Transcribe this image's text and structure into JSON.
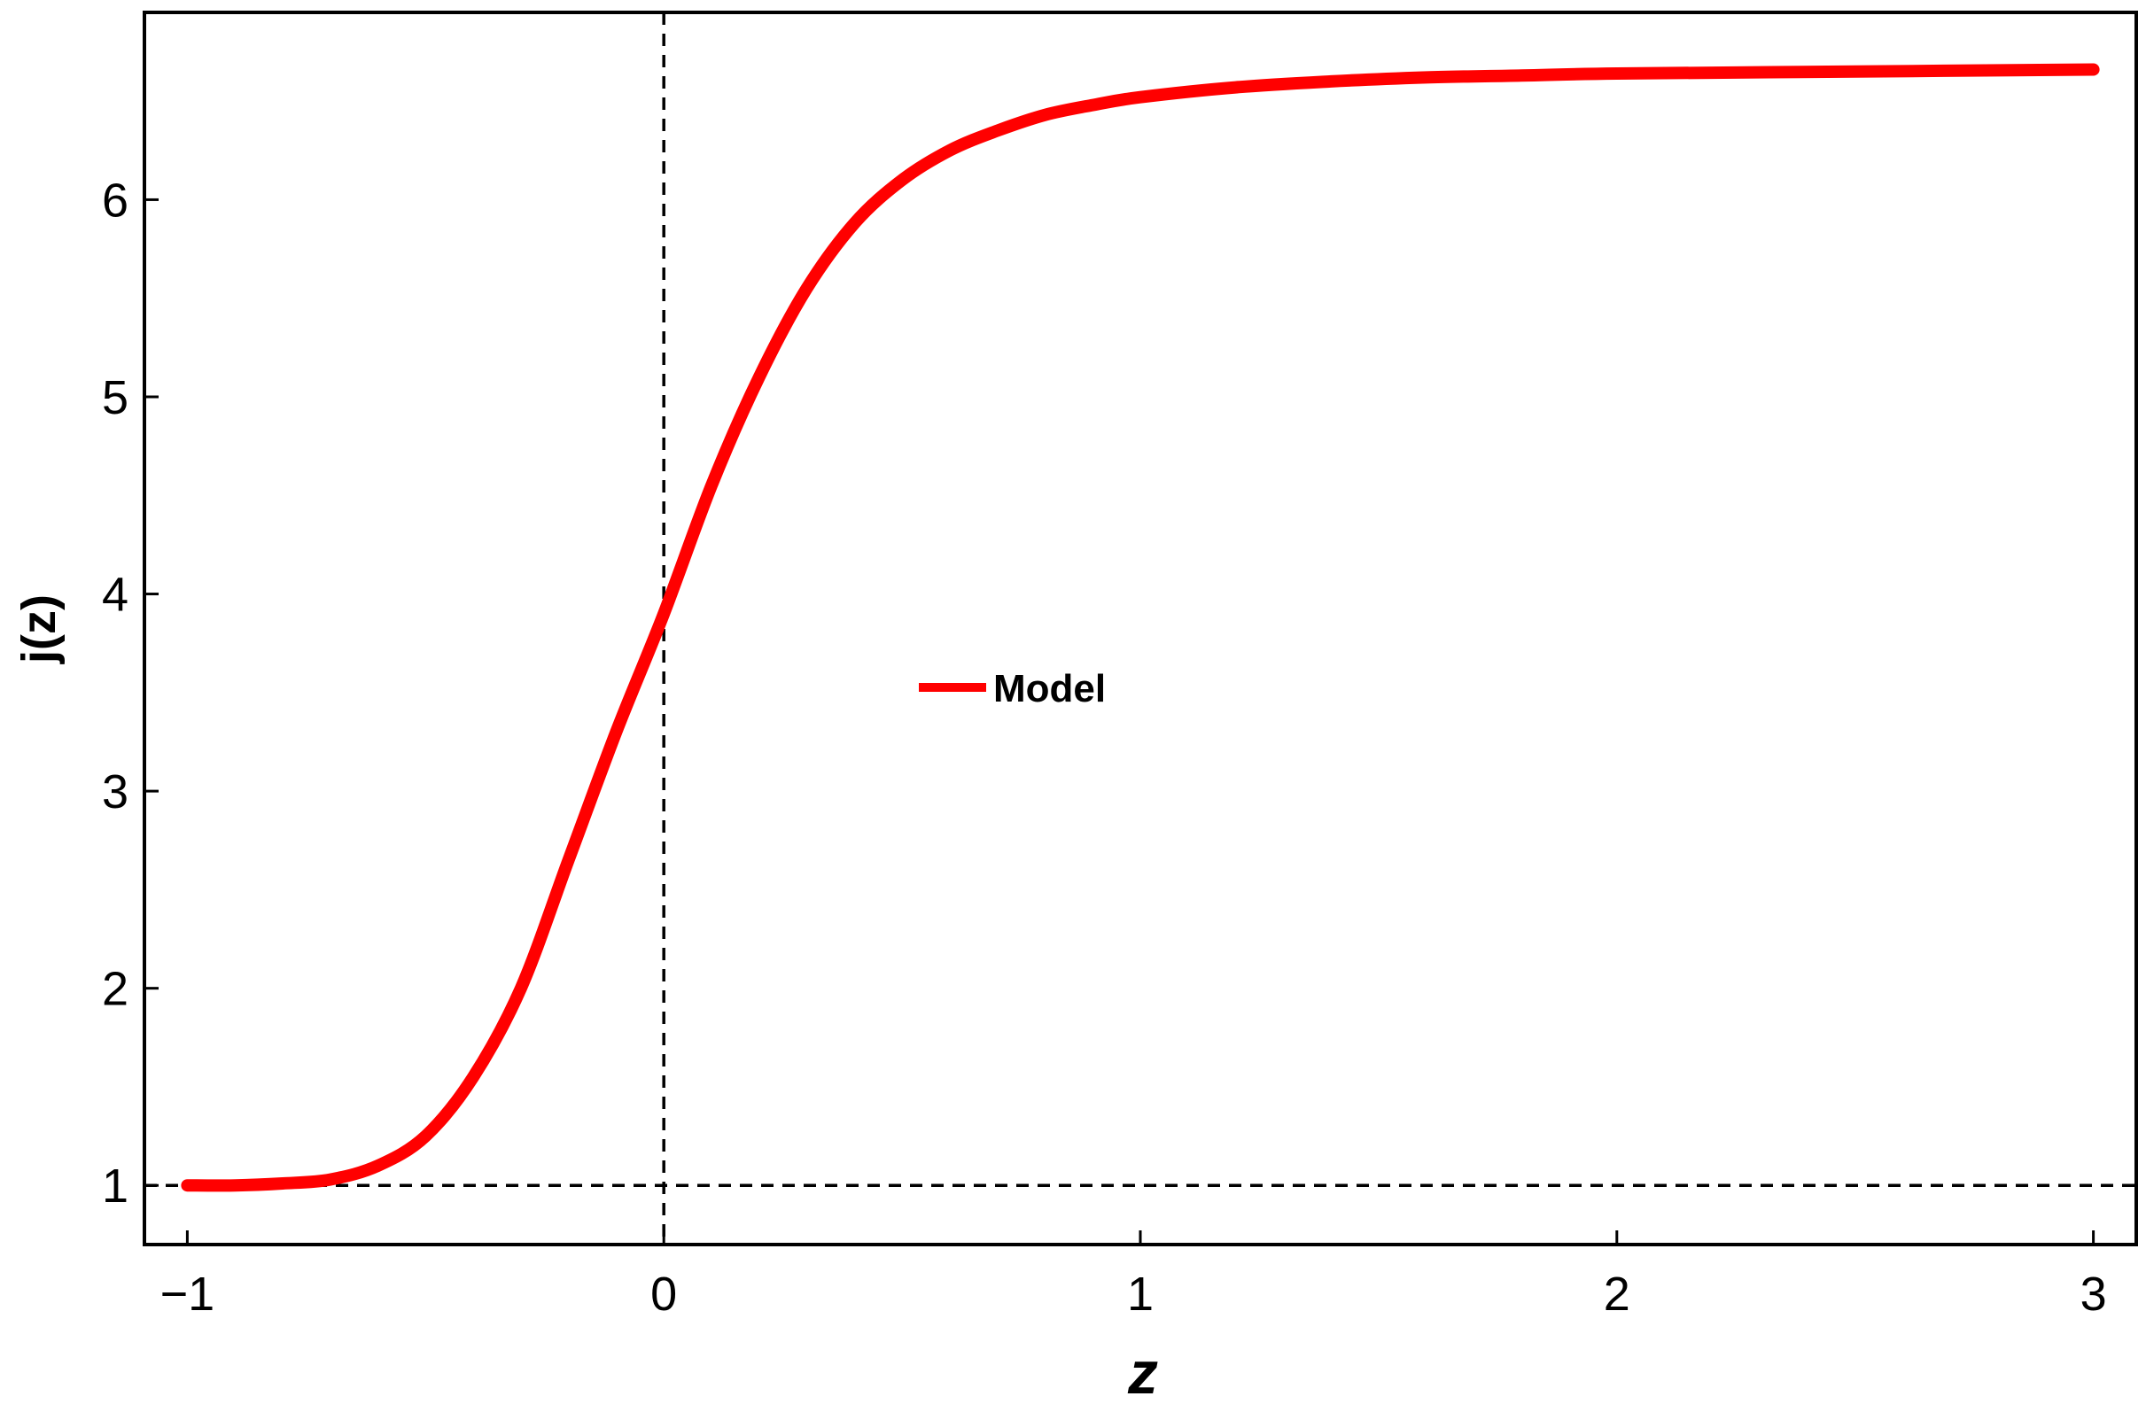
{
  "chart_data": {
    "type": "line",
    "title": "",
    "xlabel": "z",
    "ylabel": "j(z)",
    "xlim": [
      -1.09,
      3.09
    ],
    "ylim": [
      0.7,
      6.95
    ],
    "x_ticks": [
      -1,
      0,
      1,
      2,
      3
    ],
    "x_tick_labels": [
      "−1",
      "0",
      "1",
      "2",
      "3"
    ],
    "y_ticks": [
      1,
      2,
      3,
      4,
      5,
      6
    ],
    "y_tick_labels": [
      "1",
      "2",
      "3",
      "4",
      "5",
      "6"
    ],
    "grid": false,
    "legend": {
      "position": "center",
      "entries": [
        "Model"
      ]
    },
    "reference_lines": [
      {
        "orientation": "horizontal",
        "value": 1,
        "style": "dashed",
        "color": "#000000"
      },
      {
        "orientation": "vertical",
        "value": 0,
        "style": "dashed",
        "color": "#000000"
      }
    ],
    "series": [
      {
        "name": "Model",
        "color": "#ff0000",
        "x": [
          -1.0,
          -0.9,
          -0.8,
          -0.7,
          -0.6,
          -0.5,
          -0.4,
          -0.3,
          -0.2,
          -0.1,
          0.0,
          0.1,
          0.2,
          0.3,
          0.4,
          0.5,
          0.6,
          0.7,
          0.8,
          0.9,
          1.0,
          1.2,
          1.4,
          1.6,
          1.8,
          2.0,
          2.5,
          3.0
        ],
        "y": [
          1.0,
          1.0,
          1.01,
          1.03,
          1.1,
          1.25,
          1.55,
          2.0,
          2.65,
          3.3,
          3.9,
          4.55,
          5.1,
          5.55,
          5.88,
          6.1,
          6.25,
          6.35,
          6.43,
          6.48,
          6.52,
          6.57,
          6.6,
          6.62,
          6.63,
          6.64,
          6.65,
          6.66
        ]
      }
    ]
  }
}
